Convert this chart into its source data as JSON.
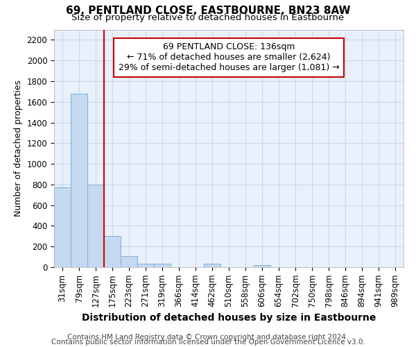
{
  "title": "69, PENTLAND CLOSE, EASTBOURNE, BN23 8AW",
  "subtitle": "Size of property relative to detached houses in Eastbourne",
  "xlabel": "Distribution of detached houses by size in Eastbourne",
  "ylabel": "Number of detached properties",
  "footnote1": "Contains HM Land Registry data © Crown copyright and database right 2024.",
  "footnote2": "Contains public sector information licensed under the Open Government Licence v3.0.",
  "categories": [
    "31sqm",
    "79sqm",
    "127sqm",
    "175sqm",
    "223sqm",
    "271sqm",
    "319sqm",
    "366sqm",
    "414sqm",
    "462sqm",
    "510sqm",
    "558sqm",
    "606sqm",
    "654sqm",
    "702sqm",
    "750sqm",
    "798sqm",
    "846sqm",
    "894sqm",
    "941sqm",
    "989sqm"
  ],
  "values": [
    770,
    1680,
    800,
    300,
    110,
    35,
    35,
    0,
    0,
    35,
    0,
    0,
    20,
    0,
    0,
    0,
    0,
    0,
    0,
    0,
    0
  ],
  "bar_color": "#c5d9f0",
  "bar_edge_color": "#7ab0d8",
  "grid_color": "#c8d8ec",
  "bg_color": "#e8f0fa",
  "annotation_box_color": "#cc0000",
  "vline_color": "#cc0000",
  "vline_position": 2.5,
  "ylim": [
    0,
    2300
  ],
  "yticks": [
    0,
    200,
    400,
    600,
    800,
    1000,
    1200,
    1400,
    1600,
    1800,
    2000,
    2200
  ],
  "annotation_title": "69 PENTLAND CLOSE: 136sqm",
  "annotation_line1": "← 71% of detached houses are smaller (2,624)",
  "annotation_line2": "29% of semi-detached houses are larger (1,081) →",
  "title_fontsize": 11,
  "subtitle_fontsize": 9.5,
  "xlabel_fontsize": 10,
  "ylabel_fontsize": 9,
  "tick_fontsize": 8.5,
  "annotation_fontsize": 9,
  "footnote_fontsize": 7.5
}
